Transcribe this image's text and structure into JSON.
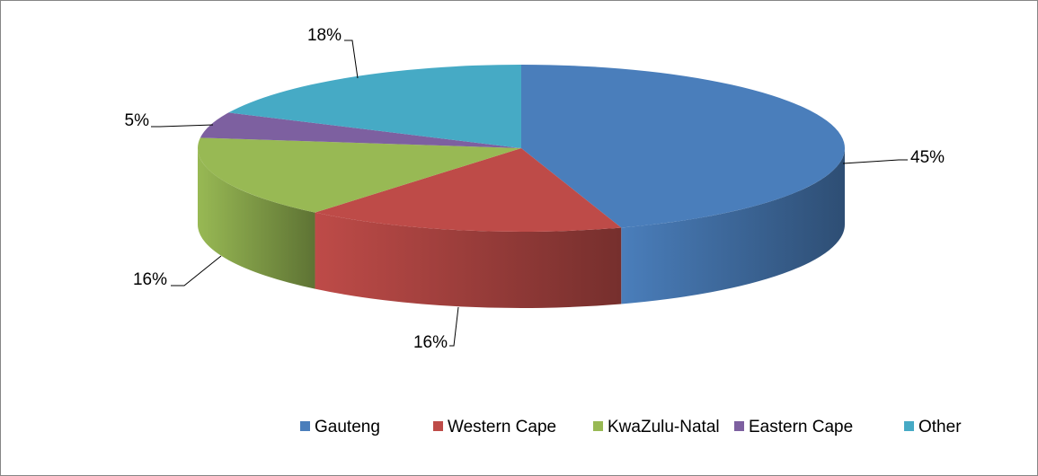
{
  "chart_data": {
    "type": "pie3d",
    "categories": [
      "Gauteng",
      "Western Cape",
      "KwaZulu-Natal",
      "Eastern Cape",
      "Other"
    ],
    "values": [
      45,
      16,
      16,
      5,
      18
    ],
    "value_labels": [
      "45%",
      "16%",
      "16%",
      "5%",
      "18%"
    ],
    "colors": [
      "#4a7ebb",
      "#be4b48",
      "#98b954",
      "#7d60a0",
      "#46aac5"
    ],
    "legend": "bottom"
  }
}
